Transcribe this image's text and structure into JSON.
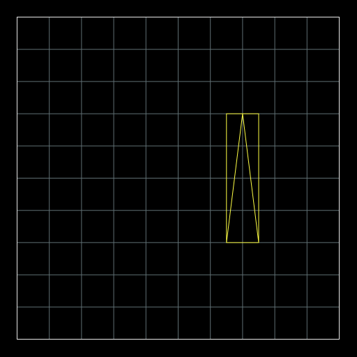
{
  "colors": {
    "background": "#000000",
    "grid_line": "#5f6f73",
    "border": "#e8e8e8",
    "shape_stroke": "#ffff44"
  },
  "grid": {
    "columns": 10,
    "rows": 10
  },
  "shapes": {
    "bounding_rect": {
      "col_start": 6.5,
      "col_end": 7.5,
      "row_start": 3,
      "row_end": 7
    },
    "triangle": {
      "apex": [
        7,
        3
      ],
      "base_left": [
        6.5,
        7
      ],
      "base_right": [
        7.5,
        7
      ]
    }
  }
}
